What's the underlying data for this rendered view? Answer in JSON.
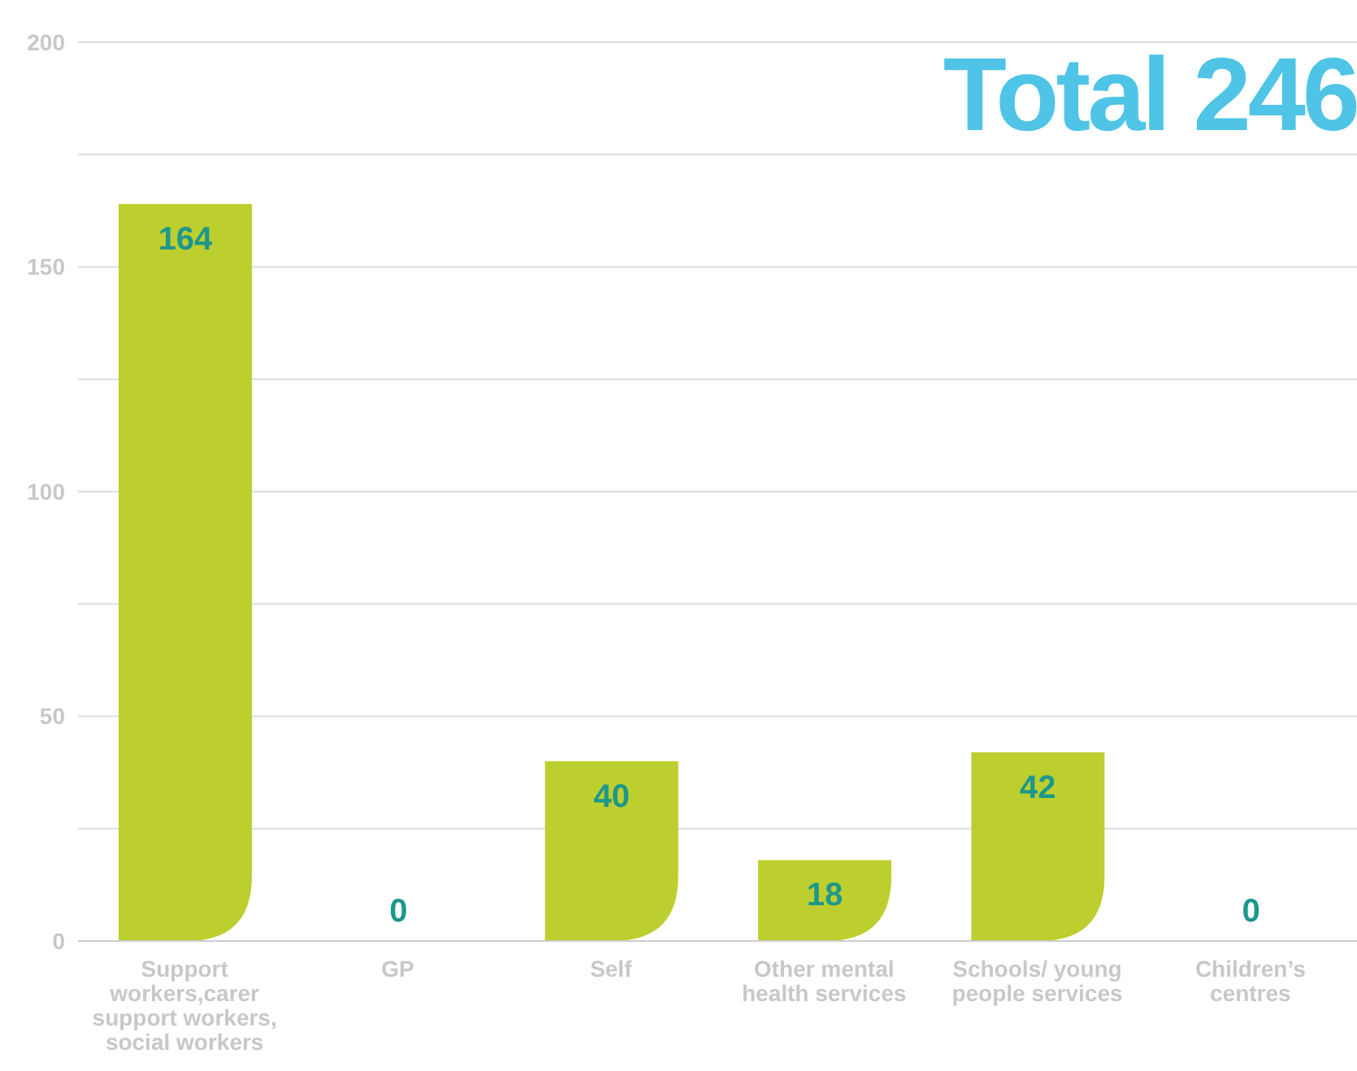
{
  "chart_data": {
    "type": "bar",
    "title": "Total 246",
    "categories": [
      "Support workers,carer support workers, social workers",
      "GP",
      "Self",
      "Other mental health services",
      "Schools/ young people services",
      "Children’s centres"
    ],
    "values": [
      164,
      0,
      40,
      18,
      42,
      0
    ],
    "color": "#bccf2e",
    "ylim": [
      0,
      200
    ],
    "yticks": [
      0,
      {
        "value": 25,
        "label": null
      },
      50,
      {
        "value": 75,
        "label": null
      },
      100,
      {
        "value": 125,
        "label": null
      },
      150,
      {
        "value": 175,
        "label": null
      },
      200
    ],
    "grid": "y",
    "data_labels": true
  }
}
